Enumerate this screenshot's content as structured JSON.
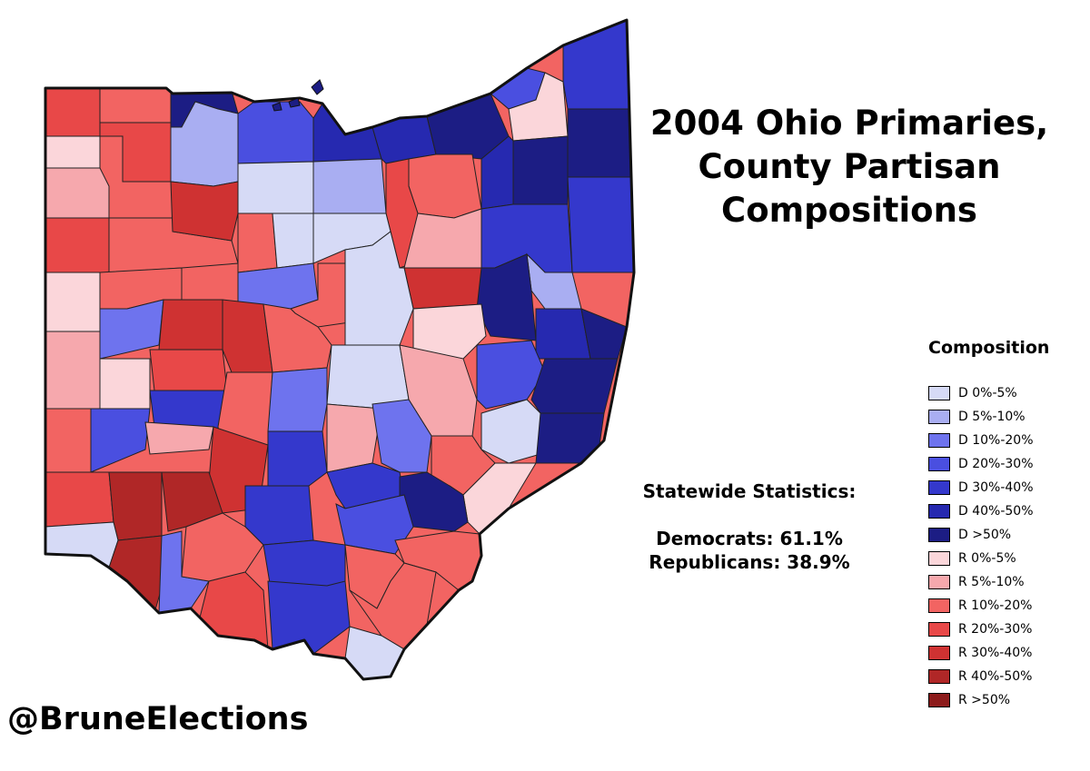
{
  "title_lines": [
    "2004 Ohio Primaries,",
    "County Partisan",
    "Compositions"
  ],
  "stats": {
    "heading": "Statewide Statistics:",
    "democrats": "Democrats: 61.1%",
    "republicans": "Republicans: 38.9%"
  },
  "legend": {
    "title": "Composition",
    "items": [
      {
        "label": "D 0%-5%",
        "color": "#d6daf6"
      },
      {
        "label": "D 5%-10%",
        "color": "#a9aef2"
      },
      {
        "label": "D 10%-20%",
        "color": "#6e73ee"
      },
      {
        "label": "D 20%-30%",
        "color": "#4a4fe0"
      },
      {
        "label": "D 30%-40%",
        "color": "#3438cc"
      },
      {
        "label": "D 40%-50%",
        "color": "#2629b0"
      },
      {
        "label": "D >50%",
        "color": "#1c1d84"
      },
      {
        "label": "R 0%-5%",
        "color": "#fbd6da"
      },
      {
        "label": "R 5%-10%",
        "color": "#f6a8ad"
      },
      {
        "label": "R 10%-20%",
        "color": "#f26462"
      },
      {
        "label": "R 20%-30%",
        "color": "#e84848"
      },
      {
        "label": "R 30%-40%",
        "color": "#cf3232"
      },
      {
        "label": "R 40%-50%",
        "color": "#b02727"
      },
      {
        "label": "R >50%",
        "color": "#8c1b1b"
      }
    ]
  },
  "handle": "@BruneElections",
  "map_colors": {
    "d0": "#d6daf6",
    "d5": "#a9aef2",
    "d10": "#6e73ee",
    "d20": "#4a4fe0",
    "d30": "#3438cc",
    "d40": "#2629b0",
    "d50": "#1c1d84",
    "r0": "#fbd6da",
    "r5": "#f6a8ad",
    "r10": "#f26462",
    "r20": "#e84848",
    "r30": "#cf3232",
    "r40": "#b02727",
    "r50": "#8c1b1b"
  }
}
